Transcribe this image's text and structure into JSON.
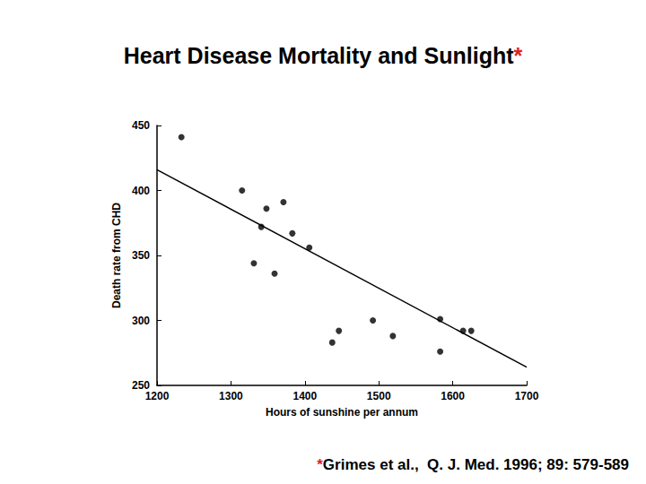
{
  "chart_data": {
    "type": "scatter",
    "title": "Heart Disease Mortality and Sunlight*",
    "footnote": "*Grimes et al.,  Q. J. Med. 1996; 89: 579-589",
    "x_label": "Hours of sunshine per annum",
    "y_label": "Death rate from CHD",
    "xlim": [
      1200,
      1700
    ],
    "xticks": [
      1200,
      1300,
      1400,
      1500,
      1600,
      1700
    ],
    "ylim": [
      250,
      450
    ],
    "yticks": [
      250,
      300,
      350,
      400,
      450
    ],
    "grid": false,
    "series": [
      {
        "type": "scatter",
        "color": "#000000",
        "marker": "circle",
        "x": [
          1233,
          1315,
          1348,
          1371,
          1341,
          1383,
          1406,
          1331,
          1359,
          1446,
          1437,
          1492,
          1519,
          1583,
          1583,
          1614,
          1625
        ],
        "values": [
          441,
          400,
          386,
          391,
          372,
          367,
          356,
          344,
          336,
          292,
          283,
          300,
          288,
          301,
          276,
          292,
          292
        ]
      },
      {
        "type": "line",
        "color": "#000000",
        "marker": "none",
        "x": [
          1200,
          1700
        ],
        "values": [
          416,
          264
        ]
      }
    ]
  }
}
